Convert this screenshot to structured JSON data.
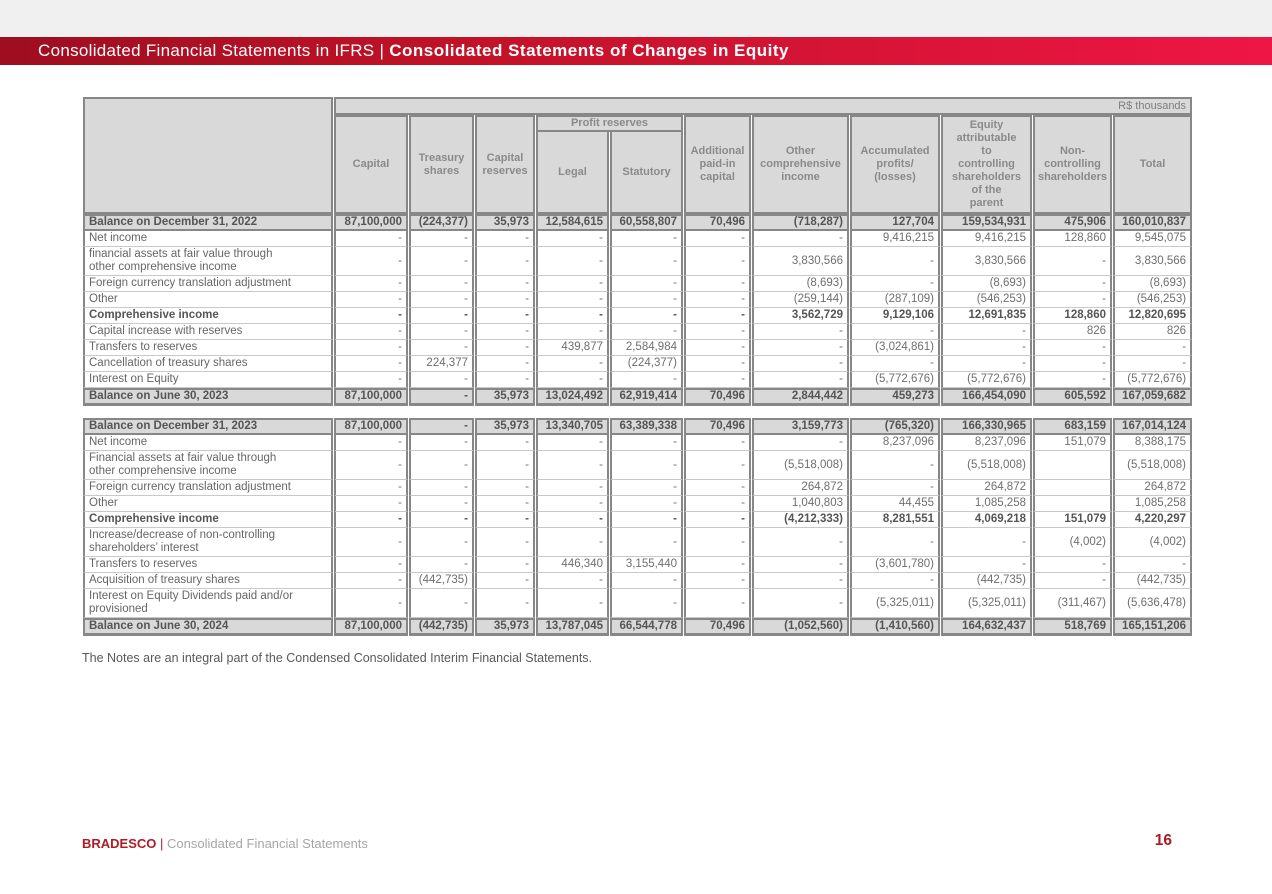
{
  "header": {
    "title_regular": "Consolidated Financial Statements in IFRS ",
    "title_separator": "| ",
    "title_bold": "Consolidated Statements of Changes in Equity"
  },
  "table": {
    "unit_label": "R$ thousands",
    "profit_reserves_label": "Profit reserves",
    "columns": [
      "Capital",
      "Treasury\nshares",
      "Capital\nreserves",
      "Legal",
      "Statutory",
      "Additional\npaid-in\ncapital",
      "Other\ncomprehensive\nincome",
      "Accumulated\nprofits/\n(losses)",
      "Equity\nattributable\nto\ncontrolling\nshareholders\nof the\nparent",
      "Non-\ncontrolling\nshareholders",
      "Total"
    ],
    "sections": [
      {
        "rows": [
          {
            "label": "Balance on December 31,  2022",
            "style": "balance",
            "values": [
              "87,100,000",
              "(224,377)",
              "35,973",
              "12,584,615",
              "60,558,807",
              "70,496",
              "(718,287)",
              "127,704",
              "159,534,931",
              "475,906",
              "160,010,837"
            ]
          },
          {
            "label": "Net income",
            "style": "normal",
            "values": [
              "-",
              "-",
              "-",
              "-",
              "-",
              "-",
              "-",
              "9,416,215",
              "9,416,215",
              "128,860",
              "9,545,075"
            ]
          },
          {
            "label": "financial assets at fair value through other comprehensive income",
            "style": "normal",
            "values": [
              "-",
              "-",
              "-",
              "-",
              "-",
              "-",
              "3,830,566",
              "-",
              "3,830,566",
              "-",
              "3,830,566"
            ]
          },
          {
            "label": "Foreign currency translation adjustment",
            "style": "normal",
            "values": [
              "-",
              "-",
              "-",
              "-",
              "-",
              "-",
              "(8,693)",
              "-",
              "(8,693)",
              "-",
              "(8,693)"
            ]
          },
          {
            "label": "Other",
            "style": "normal",
            "values": [
              "-",
              "-",
              "-",
              "-",
              "-",
              "-",
              "(259,144)",
              "(287,109)",
              "(546,253)",
              "-",
              "(546,253)"
            ]
          },
          {
            "label": "Comprehensive income",
            "style": "bold",
            "values": [
              "-",
              "-",
              "-",
              "-",
              "-",
              "-",
              "3,562,729",
              "9,129,106",
              "12,691,835",
              "128,860",
              "12,820,695"
            ]
          },
          {
            "label": "Capital increase with reserves",
            "style": "normal",
            "values": [
              "-",
              "-",
              "-",
              "-",
              "-",
              "-",
              "-",
              "-",
              "-",
              "826",
              "826"
            ]
          },
          {
            "label": "Transfers to reserves",
            "style": "normal",
            "values": [
              "-",
              "-",
              "-",
              "439,877",
              "2,584,984",
              "-",
              "-",
              "(3,024,861)",
              "-",
              "-",
              "-"
            ]
          },
          {
            "label": "Cancellation of treasury shares",
            "style": "normal",
            "values": [
              "-",
              "224,377",
              "-",
              "-",
              "(224,377)",
              "-",
              "-",
              "-",
              "-",
              "-",
              "-"
            ]
          },
          {
            "label": "Interest on Equity",
            "style": "normal",
            "values": [
              "-",
              "-",
              "-",
              "-",
              "-",
              "-",
              "-",
              "(5,772,676)",
              "(5,772,676)",
              "-",
              "(5,772,676)"
            ]
          },
          {
            "label": "Balance on June 30, 2023",
            "style": "balance",
            "values": [
              "87,100,000",
              "-",
              "35,973",
              "13,024,492",
              "62,919,414",
              "70,496",
              "2,844,442",
              "459,273",
              "166,454,090",
              "605,592",
              "167,059,682"
            ]
          }
        ]
      },
      {
        "rows": [
          {
            "label": "Balance on December 31, 2023",
            "style": "balance",
            "values": [
              "87,100,000",
              "-",
              "35,973",
              "13,340,705",
              "63,389,338",
              "70,496",
              "3,159,773",
              "(765,320)",
              "166,330,965",
              "683,159",
              "167,014,124"
            ]
          },
          {
            "label": "Net income",
            "style": "normal",
            "values": [
              "-",
              "-",
              "-",
              "-",
              "-",
              "-",
              "-",
              "8,237,096",
              "8,237,096",
              "151,079",
              "8,388,175"
            ]
          },
          {
            "label": "Financial assets at fair value through other comprehensive income",
            "style": "normal",
            "values": [
              "-",
              "-",
              "-",
              "-",
              "-",
              "-",
              "(5,518,008)",
              "-",
              "(5,518,008)",
              "",
              "(5,518,008)"
            ]
          },
          {
            "label": "Foreign currency translation adjustment",
            "style": "normal",
            "values": [
              "-",
              "-",
              "-",
              "-",
              "-",
              "-",
              "264,872",
              "-",
              "264,872",
              "",
              "264,872"
            ]
          },
          {
            "label": "Other",
            "style": "normal",
            "values": [
              "-",
              "-",
              "-",
              "-",
              "-",
              "-",
              "1,040,803",
              "44,455",
              "1,085,258",
              "",
              "1,085,258"
            ]
          },
          {
            "label": "Comprehensive income",
            "style": "bold",
            "values": [
              "-",
              "-",
              "-",
              "-",
              "-",
              "-",
              "(4,212,333)",
              "8,281,551",
              "4,069,218",
              "151,079",
              "4,220,297"
            ]
          },
          {
            "label": "Increase/decrease of non-controlling shareholders’ interest",
            "style": "normal",
            "values": [
              "-",
              "-",
              "-",
              "-",
              "-",
              "-",
              "-",
              "-",
              "-",
              "(4,002)",
              "(4,002)"
            ]
          },
          {
            "label": "Transfers to reserves",
            "style": "normal",
            "values": [
              "-",
              "-",
              "-",
              "446,340",
              "3,155,440",
              "-",
              "-",
              "(3,601,780)",
              "-",
              "-",
              "-"
            ]
          },
          {
            "label": "Acquisition of treasury shares",
            "style": "normal",
            "values": [
              "-",
              "(442,735)",
              "-",
              "-",
              "-",
              "-",
              "-",
              "-",
              "(442,735)",
              "-",
              "(442,735)"
            ]
          },
          {
            "label": "Interest on Equity Dividends paid and/or provisioned",
            "style": "normal",
            "values": [
              "-",
              "-",
              "-",
              "-",
              "-",
              "-",
              "-",
              "(5,325,011)",
              "(5,325,011)",
              "(311,467)",
              "(5,636,478)"
            ]
          },
          {
            "label": "Balance on June 30, 2024",
            "style": "balance",
            "values": [
              "87,100,000",
              "(442,735)",
              "35,973",
              "13,787,045",
              "66,544,778",
              "70,496",
              "(1,052,560)",
              "(1,410,560)",
              "164,632,437",
              "518,769",
              "165,151,206"
            ]
          }
        ]
      }
    ]
  },
  "note": "The Notes are an integral part of the Condensed Consolidated Interim Financial Statements.",
  "footer": {
    "brand": "BRADESCO ",
    "separator": "| ",
    "text": "Consolidated Financial Statements",
    "page": "16"
  }
}
